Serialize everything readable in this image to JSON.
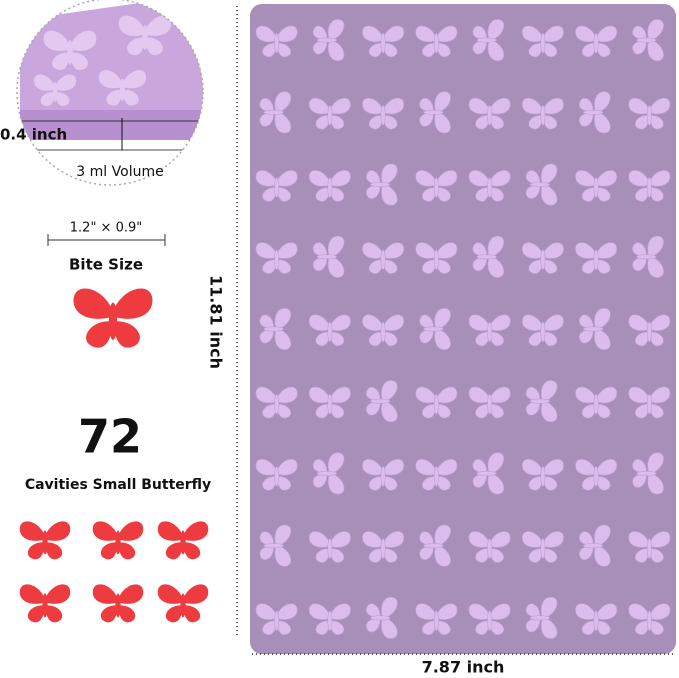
{
  "thickness_label": "0.4 inch",
  "volume_label": "3 ml Volume",
  "size_label": "1.2\" × 0.9\"",
  "size_caption": "Bite Size",
  "cavity_count": "72",
  "cavity_caption": "Cavities Small Butterfly",
  "height_label": "11.81 inch",
  "width_label": "7.87 inch"
}
